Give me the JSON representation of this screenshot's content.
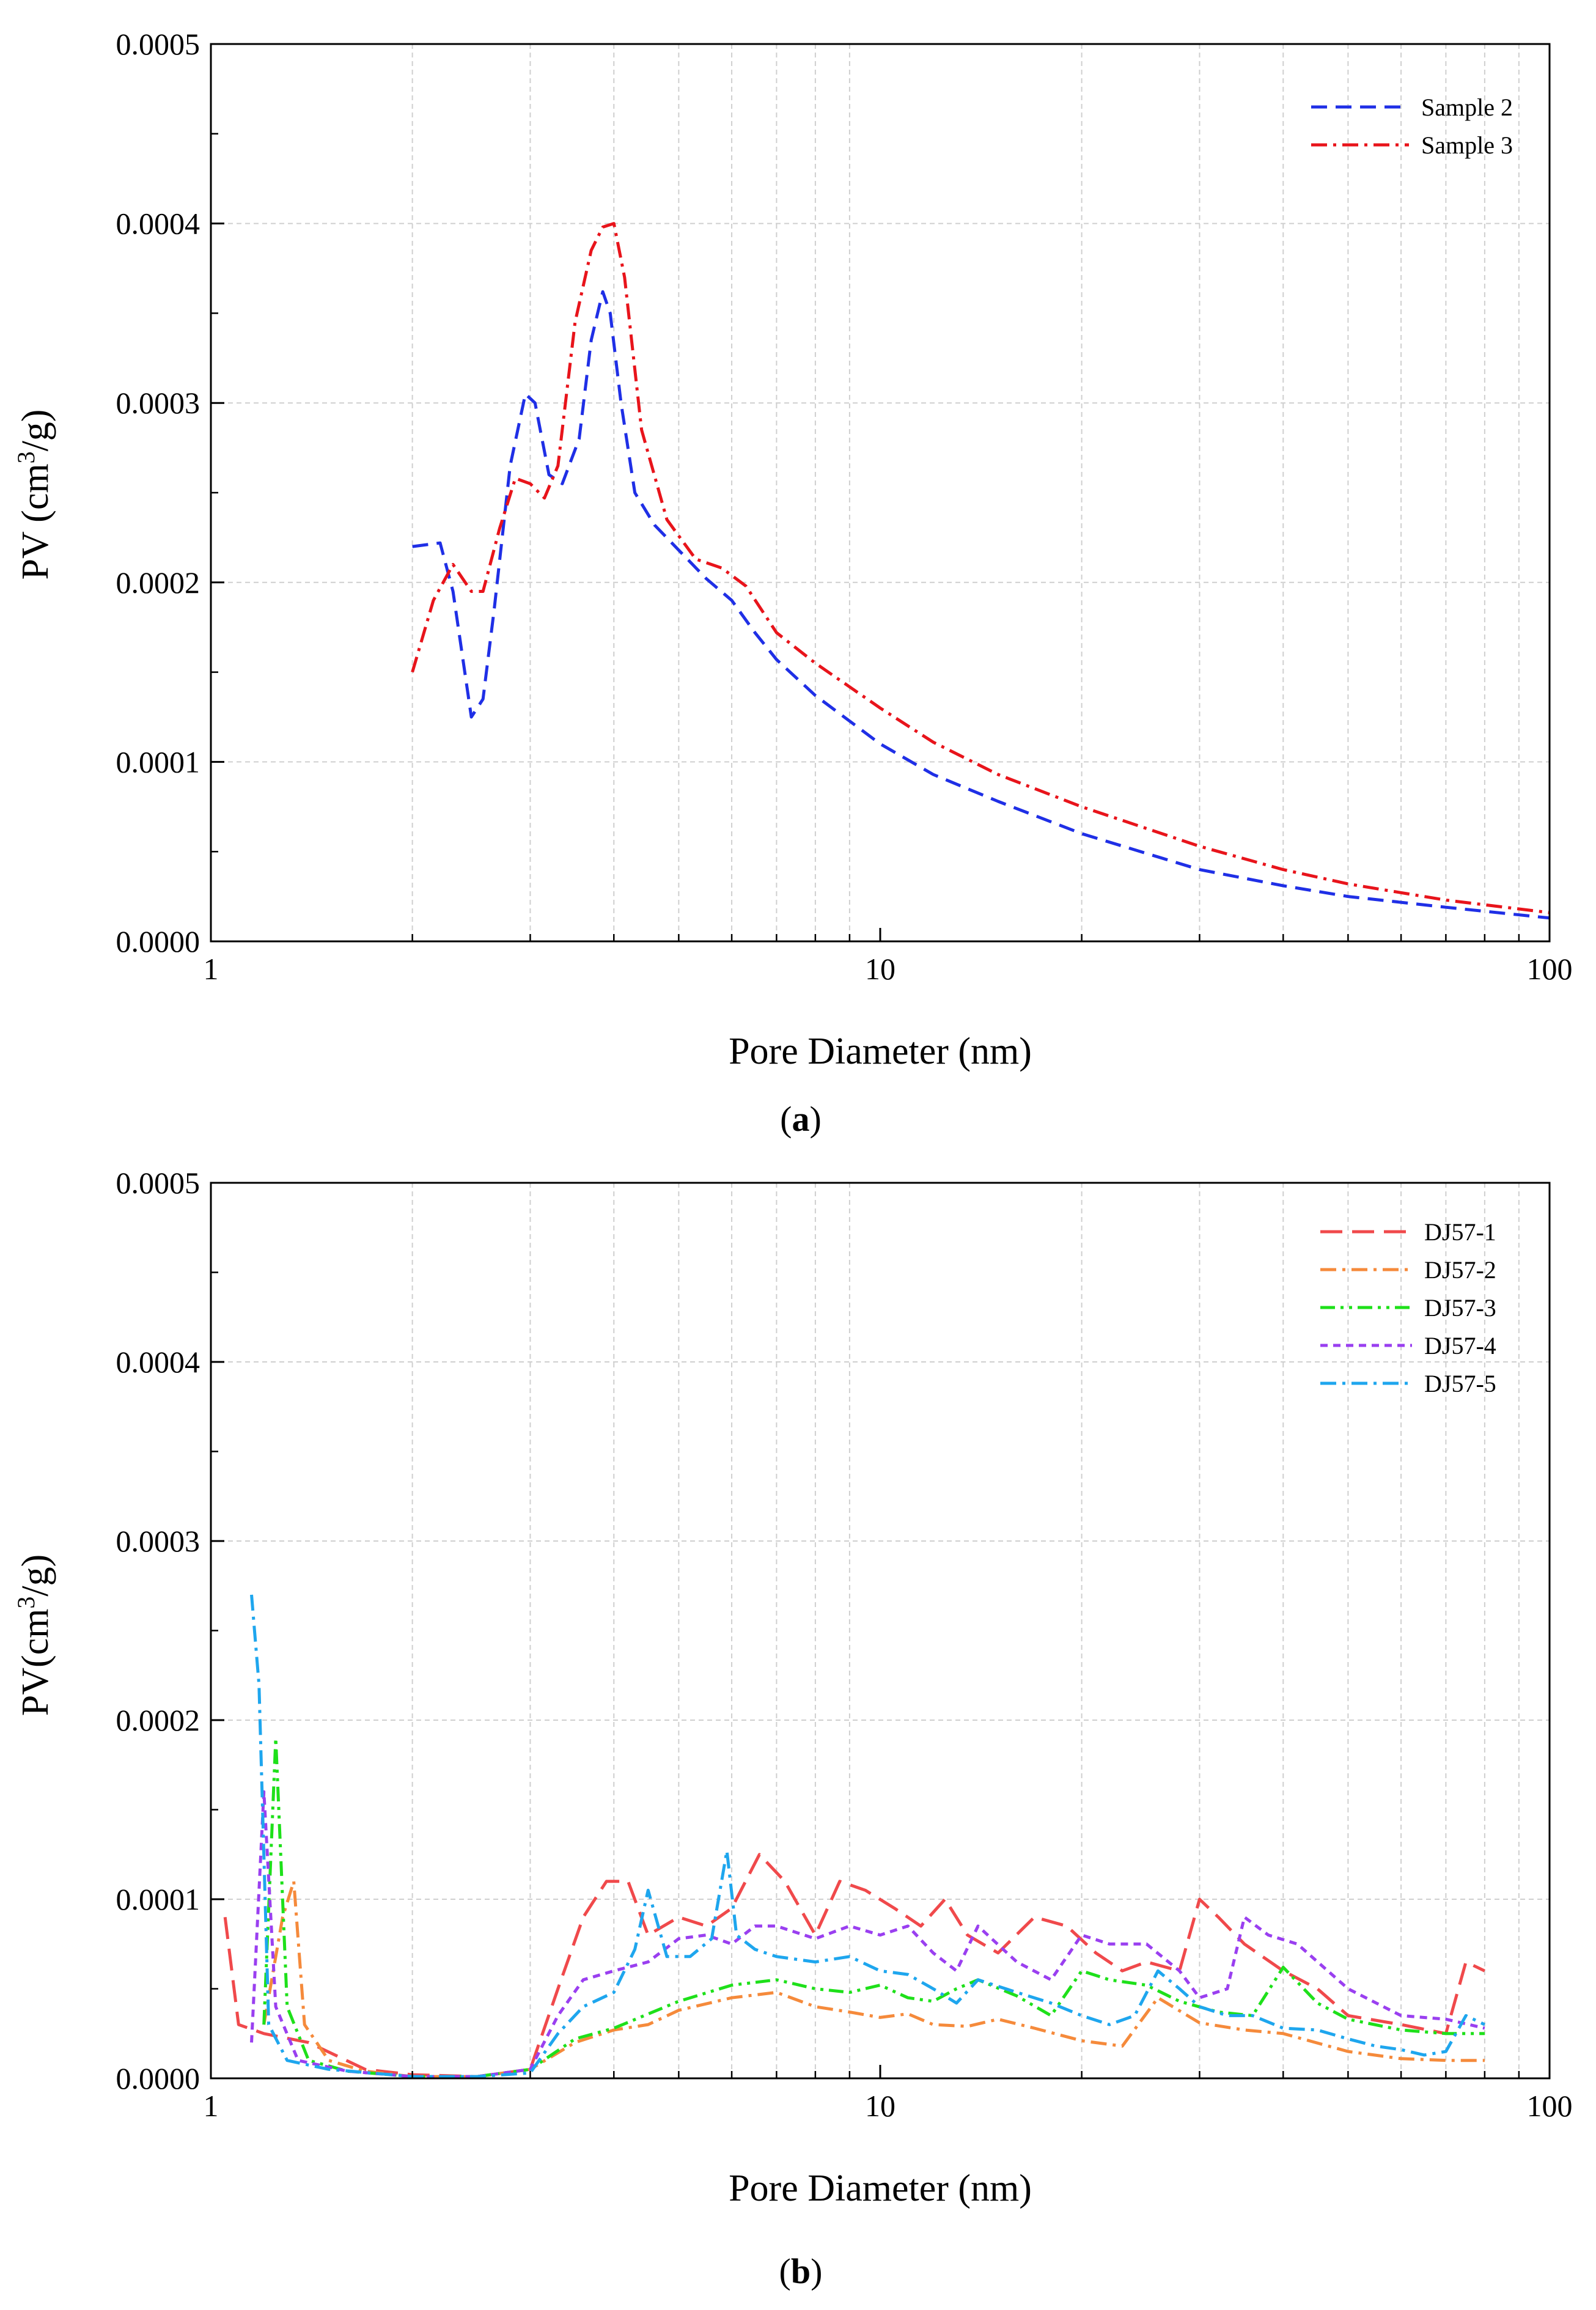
{
  "chart_data": [
    {
      "type": "line",
      "panel_label": "(a)",
      "panel_letter": "a",
      "xlabel": "Pore Diameter (nm)",
      "ylabel": "PV (cm3/g)",
      "ylabel_parts": [
        "PV (cm",
        "3",
        "/g)"
      ],
      "xscale": "log",
      "xlim": [
        1,
        100
      ],
      "ylim": [
        0,
        0.0005
      ],
      "xticks": [
        1,
        10,
        100
      ],
      "xtick_labels": [
        "1",
        "10",
        "100"
      ],
      "yticks": [
        0,
        0.0001,
        0.0002,
        0.0003,
        0.0004,
        0.0005
      ],
      "ytick_labels": [
        "0.0000",
        "0.0001",
        "0.0002",
        "0.0003",
        "0.0004",
        "0.0005"
      ],
      "grid": true,
      "legend_position": "top-right",
      "series": [
        {
          "name": "Sample 2",
          "color": "#1f2fe6",
          "dash": "dashed",
          "x": [
            2.0,
            2.2,
            2.3,
            2.45,
            2.55,
            2.65,
            2.8,
            2.95,
            3.05,
            3.2,
            3.35,
            3.55,
            3.7,
            3.85,
            3.95,
            4.1,
            4.3,
            4.6,
            5.0,
            5.5,
            6.0,
            6.5,
            7.0,
            8.0,
            10,
            12,
            15,
            20,
            30,
            40,
            50,
            70,
            100
          ],
          "y": [
            0.00022,
            0.000222,
            0.000195,
            0.000125,
            0.000135,
            0.000185,
            0.000265,
            0.000305,
            0.0003,
            0.00026,
            0.000255,
            0.00028,
            0.000335,
            0.000362,
            0.00035,
            0.0003,
            0.00025,
            0.000232,
            0.000218,
            0.000202,
            0.00019,
            0.000172,
            0.000157,
            0.000137,
            0.00011,
            9.3e-05,
            7.8e-05,
            6e-05,
            4e-05,
            3.1e-05,
            2.5e-05,
            1.9e-05,
            1.3e-05
          ]
        },
        {
          "name": "Sample 3",
          "color": "#e8141b",
          "dash": "dashdot",
          "x": [
            2.0,
            2.15,
            2.3,
            2.45,
            2.55,
            2.7,
            2.85,
            3.0,
            3.15,
            3.3,
            3.5,
            3.7,
            3.85,
            4.0,
            4.15,
            4.4,
            4.8,
            5.3,
            5.8,
            6.3,
            7.0,
            8.0,
            10,
            12,
            15,
            20,
            30,
            40,
            50,
            70,
            100
          ],
          "y": [
            0.00015,
            0.00019,
            0.00021,
            0.000195,
            0.000195,
            0.00023,
            0.000258,
            0.000255,
            0.000247,
            0.000265,
            0.000345,
            0.000385,
            0.000398,
            0.0004,
            0.00037,
            0.000285,
            0.000235,
            0.000213,
            0.000208,
            0.000198,
            0.000172,
            0.000155,
            0.00013,
            0.000111,
            9.3e-05,
            7.5e-05,
            5.3e-05,
            4e-05,
            3.2e-05,
            2.3e-05,
            1.6e-05
          ]
        }
      ]
    },
    {
      "type": "line",
      "panel_label": "(b)",
      "panel_letter": "b",
      "xlabel": "Pore Diameter (nm)",
      "ylabel": "PV(cm3/g)",
      "ylabel_parts": [
        "PV(cm",
        "3",
        "/g)"
      ],
      "xscale": "log",
      "xlim": [
        1,
        100
      ],
      "ylim": [
        0,
        0.0005
      ],
      "xticks": [
        1,
        10,
        100
      ],
      "xtick_labels": [
        "1",
        "10",
        "100"
      ],
      "yticks": [
        0,
        0.0001,
        0.0002,
        0.0003,
        0.0004,
        0.0005
      ],
      "ytick_labels": [
        "0.0000",
        "0.0001",
        "0.0002",
        "0.0003",
        "0.0004",
        "0.0005"
      ],
      "grid": true,
      "legend_position": "top-right",
      "series": [
        {
          "name": "DJ57-1",
          "color": "#f0494b",
          "dash": "longdash",
          "x": [
            1.05,
            1.1,
            1.2,
            1.4,
            1.7,
            2.0,
            2.5,
            3.0,
            3.3,
            3.6,
            3.9,
            4.2,
            4.5,
            5.0,
            5.5,
            6.0,
            6.6,
            7.2,
            8.0,
            8.7,
            9.5,
            10.5,
            11.5,
            12.5,
            13.5,
            15.0,
            17.0,
            19.0,
            21.0,
            23.0,
            25.0,
            28.0,
            30.0,
            32.0,
            35.0,
            40.0,
            45.0,
            50.0,
            60.0,
            70.0,
            75.0,
            80.0
          ],
          "y": [
            9e-05,
            3e-05,
            2.5e-05,
            2e-05,
            5e-06,
            2e-06,
            1e-06,
            5e-06,
            5e-05,
            9e-05,
            0.00011,
            0.00011,
            8e-05,
            9e-05,
            8.5e-05,
            9.5e-05,
            0.000125,
            0.00011,
            8e-05,
            0.00011,
            0.000105,
            9.5e-05,
            8.5e-05,
            0.0001,
            8e-05,
            7e-05,
            9e-05,
            8.5e-05,
            7e-05,
            6e-05,
            6.5e-05,
            6e-05,
            0.0001,
            9e-05,
            7.5e-05,
            6e-05,
            5e-05,
            3.5e-05,
            3e-05,
            2.5e-05,
            6.5e-05,
            6e-05
          ]
        },
        {
          "name": "DJ57-2",
          "color": "#f58a3b",
          "dash": "dashdot",
          "x": [
            1.2,
            1.28,
            1.33,
            1.38,
            1.5,
            1.7,
            2.0,
            2.5,
            3.0,
            3.5,
            4.0,
            4.5,
            5.0,
            6.0,
            7.0,
            8.0,
            9.0,
            10,
            11,
            12,
            13.5,
            15,
            17,
            20,
            23,
            26,
            30,
            35,
            40,
            50,
            60,
            70,
            80
          ],
          "y": [
            3e-05,
            9e-05,
            0.00011,
            3e-05,
            1e-05,
            4e-06,
            1e-06,
            1e-06,
            5e-06,
            2e-05,
            2.7e-05,
            3e-05,
            3.8e-05,
            4.5e-05,
            4.8e-05,
            4e-05,
            3.7e-05,
            3.4e-05,
            3.6e-05,
            3e-05,
            2.9e-05,
            3.3e-05,
            2.8e-05,
            2.1e-05,
            1.8e-05,
            4.5e-05,
            3.1e-05,
            2.7e-05,
            2.5e-05,
            1.5e-05,
            1.1e-05,
            1e-05,
            1e-05
          ]
        },
        {
          "name": "DJ57-3",
          "color": "#1ee01a",
          "dash": "dashdotdot",
          "x": [
            1.2,
            1.25,
            1.3,
            1.4,
            1.6,
            2.0,
            2.5,
            3.0,
            3.5,
            4.0,
            5.0,
            6.0,
            7.0,
            8.0,
            9.0,
            10,
            11,
            12,
            13,
            14,
            16,
            18,
            20,
            22,
            25,
            28,
            32,
            36,
            40,
            45,
            50,
            60,
            70,
            80
          ],
          "y": [
            3e-05,
            0.00019,
            4e-05,
            1e-05,
            4e-06,
            1e-06,
            1e-06,
            5e-06,
            2.2e-05,
            2.8e-05,
            4.3e-05,
            5.2e-05,
            5.5e-05,
            5e-05,
            4.8e-05,
            5.2e-05,
            4.5e-05,
            4.3e-05,
            5e-05,
            5.5e-05,
            4.6e-05,
            3.5e-05,
            6e-05,
            5.5e-05,
            5.2e-05,
            4.3e-05,
            3.7e-05,
            3.5e-05,
            6.2e-05,
            4.2e-05,
            3.3e-05,
            2.7e-05,
            2.5e-05,
            2.5e-05
          ]
        },
        {
          "name": "DJ57-4",
          "color": "#9a3ff0",
          "dash": "shortdash",
          "x": [
            1.15,
            1.2,
            1.25,
            1.35,
            1.6,
            2.0,
            2.5,
            3.0,
            3.3,
            3.6,
            4.0,
            4.5,
            5.0,
            5.5,
            6.0,
            6.5,
            7.0,
            8.0,
            9.0,
            10,
            11,
            12,
            13,
            14,
            16,
            18,
            20,
            22,
            25,
            28,
            30,
            33,
            35,
            38,
            42,
            50,
            60,
            70,
            80
          ],
          "y": [
            2e-05,
            0.00016,
            4e-05,
            1e-05,
            4e-06,
            1e-06,
            1e-06,
            5e-06,
            3.5e-05,
            5.5e-05,
            6e-05,
            6.5e-05,
            7.8e-05,
            8e-05,
            7.5e-05,
            8.5e-05,
            8.5e-05,
            7.8e-05,
            8.5e-05,
            8e-05,
            8.5e-05,
            7e-05,
            6e-05,
            8.5e-05,
            6.5e-05,
            5.5e-05,
            8e-05,
            7.5e-05,
            7.5e-05,
            6e-05,
            4.5e-05,
            5e-05,
            9e-05,
            8e-05,
            7.5e-05,
            5e-05,
            3.5e-05,
            3.3e-05,
            2.8e-05
          ]
        },
        {
          "name": "DJ57-5",
          "color": "#1ea6ee",
          "dash": "dashdot",
          "x": [
            1.15,
            1.18,
            1.22,
            1.3,
            1.5,
            2.0,
            2.5,
            3.0,
            3.3,
            3.6,
            4.0,
            4.3,
            4.5,
            4.8,
            5.2,
            5.6,
            5.9,
            6.1,
            6.5,
            7.0,
            8.0,
            9.0,
            10,
            11,
            12,
            13,
            14,
            16,
            18,
            20,
            22,
            24,
            26,
            28,
            30,
            33,
            36,
            40,
            45,
            50,
            55,
            60,
            65,
            70,
            75,
            80
          ],
          "y": [
            0.00027,
            0.00022,
            3e-05,
            1e-05,
            5e-06,
            1e-06,
            1e-06,
            3e-06,
            2.5e-05,
            4e-05,
            4.8e-05,
            7.2e-05,
            0.000105,
            6.8e-05,
            6.8e-05,
            7.8e-05,
            0.000127,
            8e-05,
            7.2e-05,
            6.8e-05,
            6.5e-05,
            6.8e-05,
            6e-05,
            5.8e-05,
            5e-05,
            4.2e-05,
            5.5e-05,
            4.8e-05,
            4.2e-05,
            3.5e-05,
            3e-05,
            3.5e-05,
            6e-05,
            5e-05,
            4e-05,
            3.5e-05,
            3.5e-05,
            2.8e-05,
            2.7e-05,
            2.2e-05,
            1.8e-05,
            1.6e-05,
            1.3e-05,
            1.5e-05,
            3.5e-05,
            3e-05
          ]
        }
      ]
    }
  ]
}
